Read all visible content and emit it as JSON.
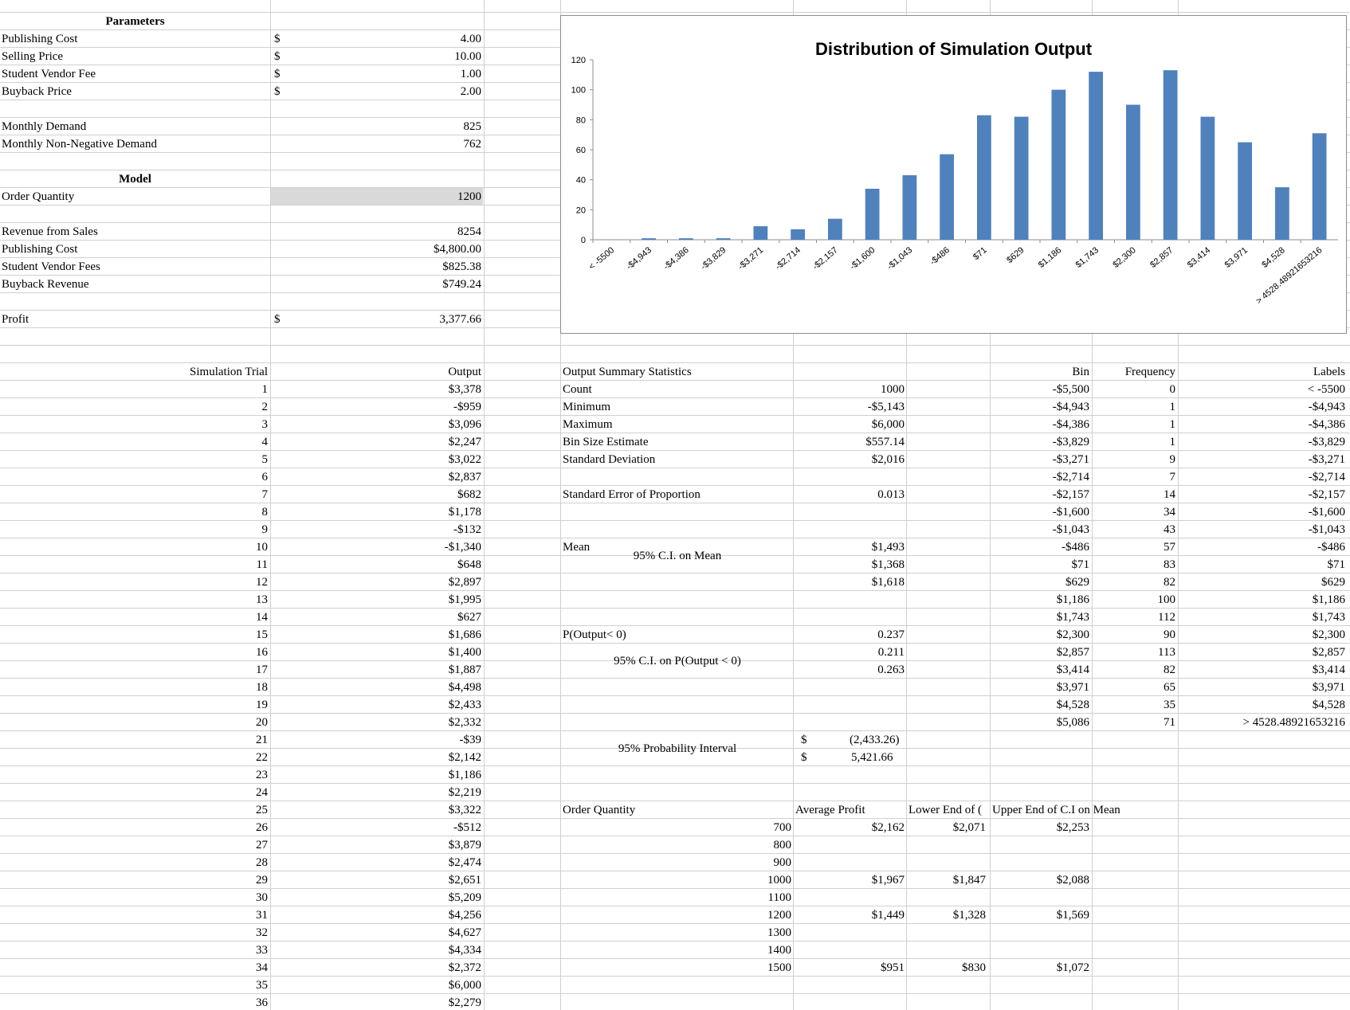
{
  "parameters": {
    "heading": "Parameters",
    "rows": [
      {
        "label": "Publishing Cost",
        "sym": "$",
        "value": "4.00"
      },
      {
        "label": "Selling Price",
        "sym": "$",
        "value": "10.00"
      },
      {
        "label": "Student Vendor Fee",
        "sym": "$",
        "value": "1.00"
      },
      {
        "label": "Buyback Price",
        "sym": "$",
        "value": "2.00"
      }
    ]
  },
  "demand": {
    "rows": [
      {
        "label": "Monthly Demand",
        "value": "825"
      },
      {
        "label": "Monthly Non-Negative Demand",
        "value": "762"
      }
    ]
  },
  "model": {
    "heading": "Model",
    "order_quantity": {
      "label": "Order Quantity",
      "value": "1200"
    },
    "rows": [
      {
        "label": "Revenue from Sales",
        "value": "8254"
      },
      {
        "label": "Publishing Cost",
        "value": "$4,800.00"
      },
      {
        "label": "Student Vendor Fees",
        "value": "$825.38"
      },
      {
        "label": "Buyback Revenue",
        "value": "$749.24"
      }
    ],
    "profit": {
      "label": "Profit",
      "sym": "$",
      "value": "3,377.66"
    }
  },
  "simulation": {
    "trial_header": "Simulation Trial",
    "output_header": "Output",
    "rows": [
      [
        "1",
        "$3,378"
      ],
      [
        "2",
        "-$959"
      ],
      [
        "3",
        "$3,096"
      ],
      [
        "4",
        "$2,247"
      ],
      [
        "5",
        "$3,022"
      ],
      [
        "6",
        "$2,837"
      ],
      [
        "7",
        "$682"
      ],
      [
        "8",
        "$1,178"
      ],
      [
        "9",
        "-$132"
      ],
      [
        "10",
        "-$1,340"
      ],
      [
        "11",
        "$648"
      ],
      [
        "12",
        "$2,897"
      ],
      [
        "13",
        "$1,995"
      ],
      [
        "14",
        "$627"
      ],
      [
        "15",
        "$1,686"
      ],
      [
        "16",
        "$1,400"
      ],
      [
        "17",
        "$1,887"
      ],
      [
        "18",
        "$4,498"
      ],
      [
        "19",
        "$2,433"
      ],
      [
        "20",
        "$2,332"
      ],
      [
        "21",
        "-$39"
      ],
      [
        "22",
        "$2,142"
      ],
      [
        "23",
        "$1,186"
      ],
      [
        "24",
        "$2,219"
      ],
      [
        "25",
        "$3,322"
      ],
      [
        "26",
        "-$512"
      ],
      [
        "27",
        "$3,879"
      ],
      [
        "28",
        "$2,474"
      ],
      [
        "29",
        "$2,651"
      ],
      [
        "30",
        "$5,209"
      ],
      [
        "31",
        "$4,256"
      ],
      [
        "32",
        "$4,627"
      ],
      [
        "33",
        "$4,334"
      ],
      [
        "34",
        "$2,372"
      ],
      [
        "35",
        "$6,000"
      ],
      [
        "36",
        "$2,279"
      ]
    ]
  },
  "stats": {
    "heading": "Output Summary Statistics",
    "count": {
      "label": "Count",
      "value": "1000"
    },
    "minimum": {
      "label": "Minimum",
      "value": "-$5,143"
    },
    "maximum": {
      "label": "Maximum",
      "value": "$6,000"
    },
    "bin_size": {
      "label": "Bin Size Estimate",
      "value": "$557.14"
    },
    "std_dev": {
      "label": "Standard Deviation",
      "value": "$2,016"
    },
    "std_err": {
      "label": "Standard Error of Proportion",
      "value": "0.013"
    },
    "mean": {
      "label": "Mean",
      "value": "$1,493"
    },
    "ci_mean": {
      "label": "95% C.I. on Mean",
      "low": "$1,368",
      "high": "$1,618"
    },
    "p_neg": {
      "label": "P(Output< 0)",
      "value": "0.237"
    },
    "ci_p": {
      "label": "95% C.I. on P(Output < 0)",
      "low": "0.211",
      "high": "0.263"
    },
    "prob_interval": {
      "label": "95% Probability Interval",
      "sym": "$",
      "low": "(2,433.26)",
      "high": "5,421.66"
    }
  },
  "bins": {
    "bin_header": "Bin",
    "freq_header": "Frequency",
    "labels_header": "Labels",
    "rows": [
      {
        "bin": "-$5,500",
        "freq": "0",
        "label": "< -5500"
      },
      {
        "bin": "-$4,943",
        "freq": "1",
        "label": "-$4,943"
      },
      {
        "bin": "-$4,386",
        "freq": "1",
        "label": "-$4,386"
      },
      {
        "bin": "-$3,829",
        "freq": "1",
        "label": "-$3,829"
      },
      {
        "bin": "-$3,271",
        "freq": "9",
        "label": "-$3,271"
      },
      {
        "bin": "-$2,714",
        "freq": "7",
        "label": "-$2,714"
      },
      {
        "bin": "-$2,157",
        "freq": "14",
        "label": "-$2,157"
      },
      {
        "bin": "-$1,600",
        "freq": "34",
        "label": "-$1,600"
      },
      {
        "bin": "-$1,043",
        "freq": "43",
        "label": "-$1,043"
      },
      {
        "bin": "-$486",
        "freq": "57",
        "label": "-$486"
      },
      {
        "bin": "$71",
        "freq": "83",
        "label": "$71"
      },
      {
        "bin": "$629",
        "freq": "82",
        "label": "$629"
      },
      {
        "bin": "$1,186",
        "freq": "100",
        "label": "$1,186"
      },
      {
        "bin": "$1,743",
        "freq": "112",
        "label": "$1,743"
      },
      {
        "bin": "$2,300",
        "freq": "90",
        "label": "$2,300"
      },
      {
        "bin": "$2,857",
        "freq": "113",
        "label": "$2,857"
      },
      {
        "bin": "$3,414",
        "freq": "82",
        "label": "$3,414"
      },
      {
        "bin": "$3,971",
        "freq": "65",
        "label": "$3,971"
      },
      {
        "bin": "$4,528",
        "freq": "35",
        "label": "$4,528"
      },
      {
        "bin": "$5,086",
        "freq": "71",
        "label": "> 4528.48921653216"
      }
    ]
  },
  "order_table": {
    "headers": [
      "Order Quantity",
      "Average Profit",
      "Lower End of (",
      "Upper End of C.I on Mean"
    ],
    "rows": [
      {
        "qty": "700",
        "avg": "$2,162",
        "low": "$2,071",
        "high": "$2,253"
      },
      {
        "qty": "800",
        "avg": "",
        "low": "",
        "high": ""
      },
      {
        "qty": "900",
        "avg": "",
        "low": "",
        "high": ""
      },
      {
        "qty": "1000",
        "avg": "$1,967",
        "low": "$1,847",
        "high": "$2,088"
      },
      {
        "qty": "1100",
        "avg": "",
        "low": "",
        "high": ""
      },
      {
        "qty": "1200",
        "avg": "$1,449",
        "low": "$1,328",
        "high": "$1,569"
      },
      {
        "qty": "1300",
        "avg": "",
        "low": "",
        "high": ""
      },
      {
        "qty": "1400",
        "avg": "",
        "low": "",
        "high": ""
      },
      {
        "qty": "1500",
        "avg": "$951",
        "low": "$830",
        "high": "$1,072"
      }
    ]
  },
  "chart_data": {
    "type": "bar",
    "title": "Distribution of Simulation Output",
    "categories": [
      "< -5500",
      "-$4,943",
      "-$4,386",
      "-$3,829",
      "-$3,271",
      "-$2,714",
      "-$2,157",
      "-$1,600",
      "-$1,043",
      "-$486",
      "$71",
      "$629",
      "$1,186",
      "$1,743",
      "$2,300",
      "$2,857",
      "$3,414",
      "$3,971",
      "$4,528",
      "> 4528.48921653216"
    ],
    "values": [
      0,
      1,
      1,
      1,
      9,
      7,
      14,
      34,
      43,
      57,
      83,
      82,
      100,
      112,
      90,
      113,
      82,
      65,
      35,
      71
    ],
    "yticks": [
      0,
      20,
      40,
      60,
      80,
      100,
      120
    ],
    "ylim": [
      0,
      120
    ],
    "bar_color": "#4f81bd",
    "grid": false,
    "legend": "none",
    "xlabel": "",
    "ylabel": ""
  }
}
